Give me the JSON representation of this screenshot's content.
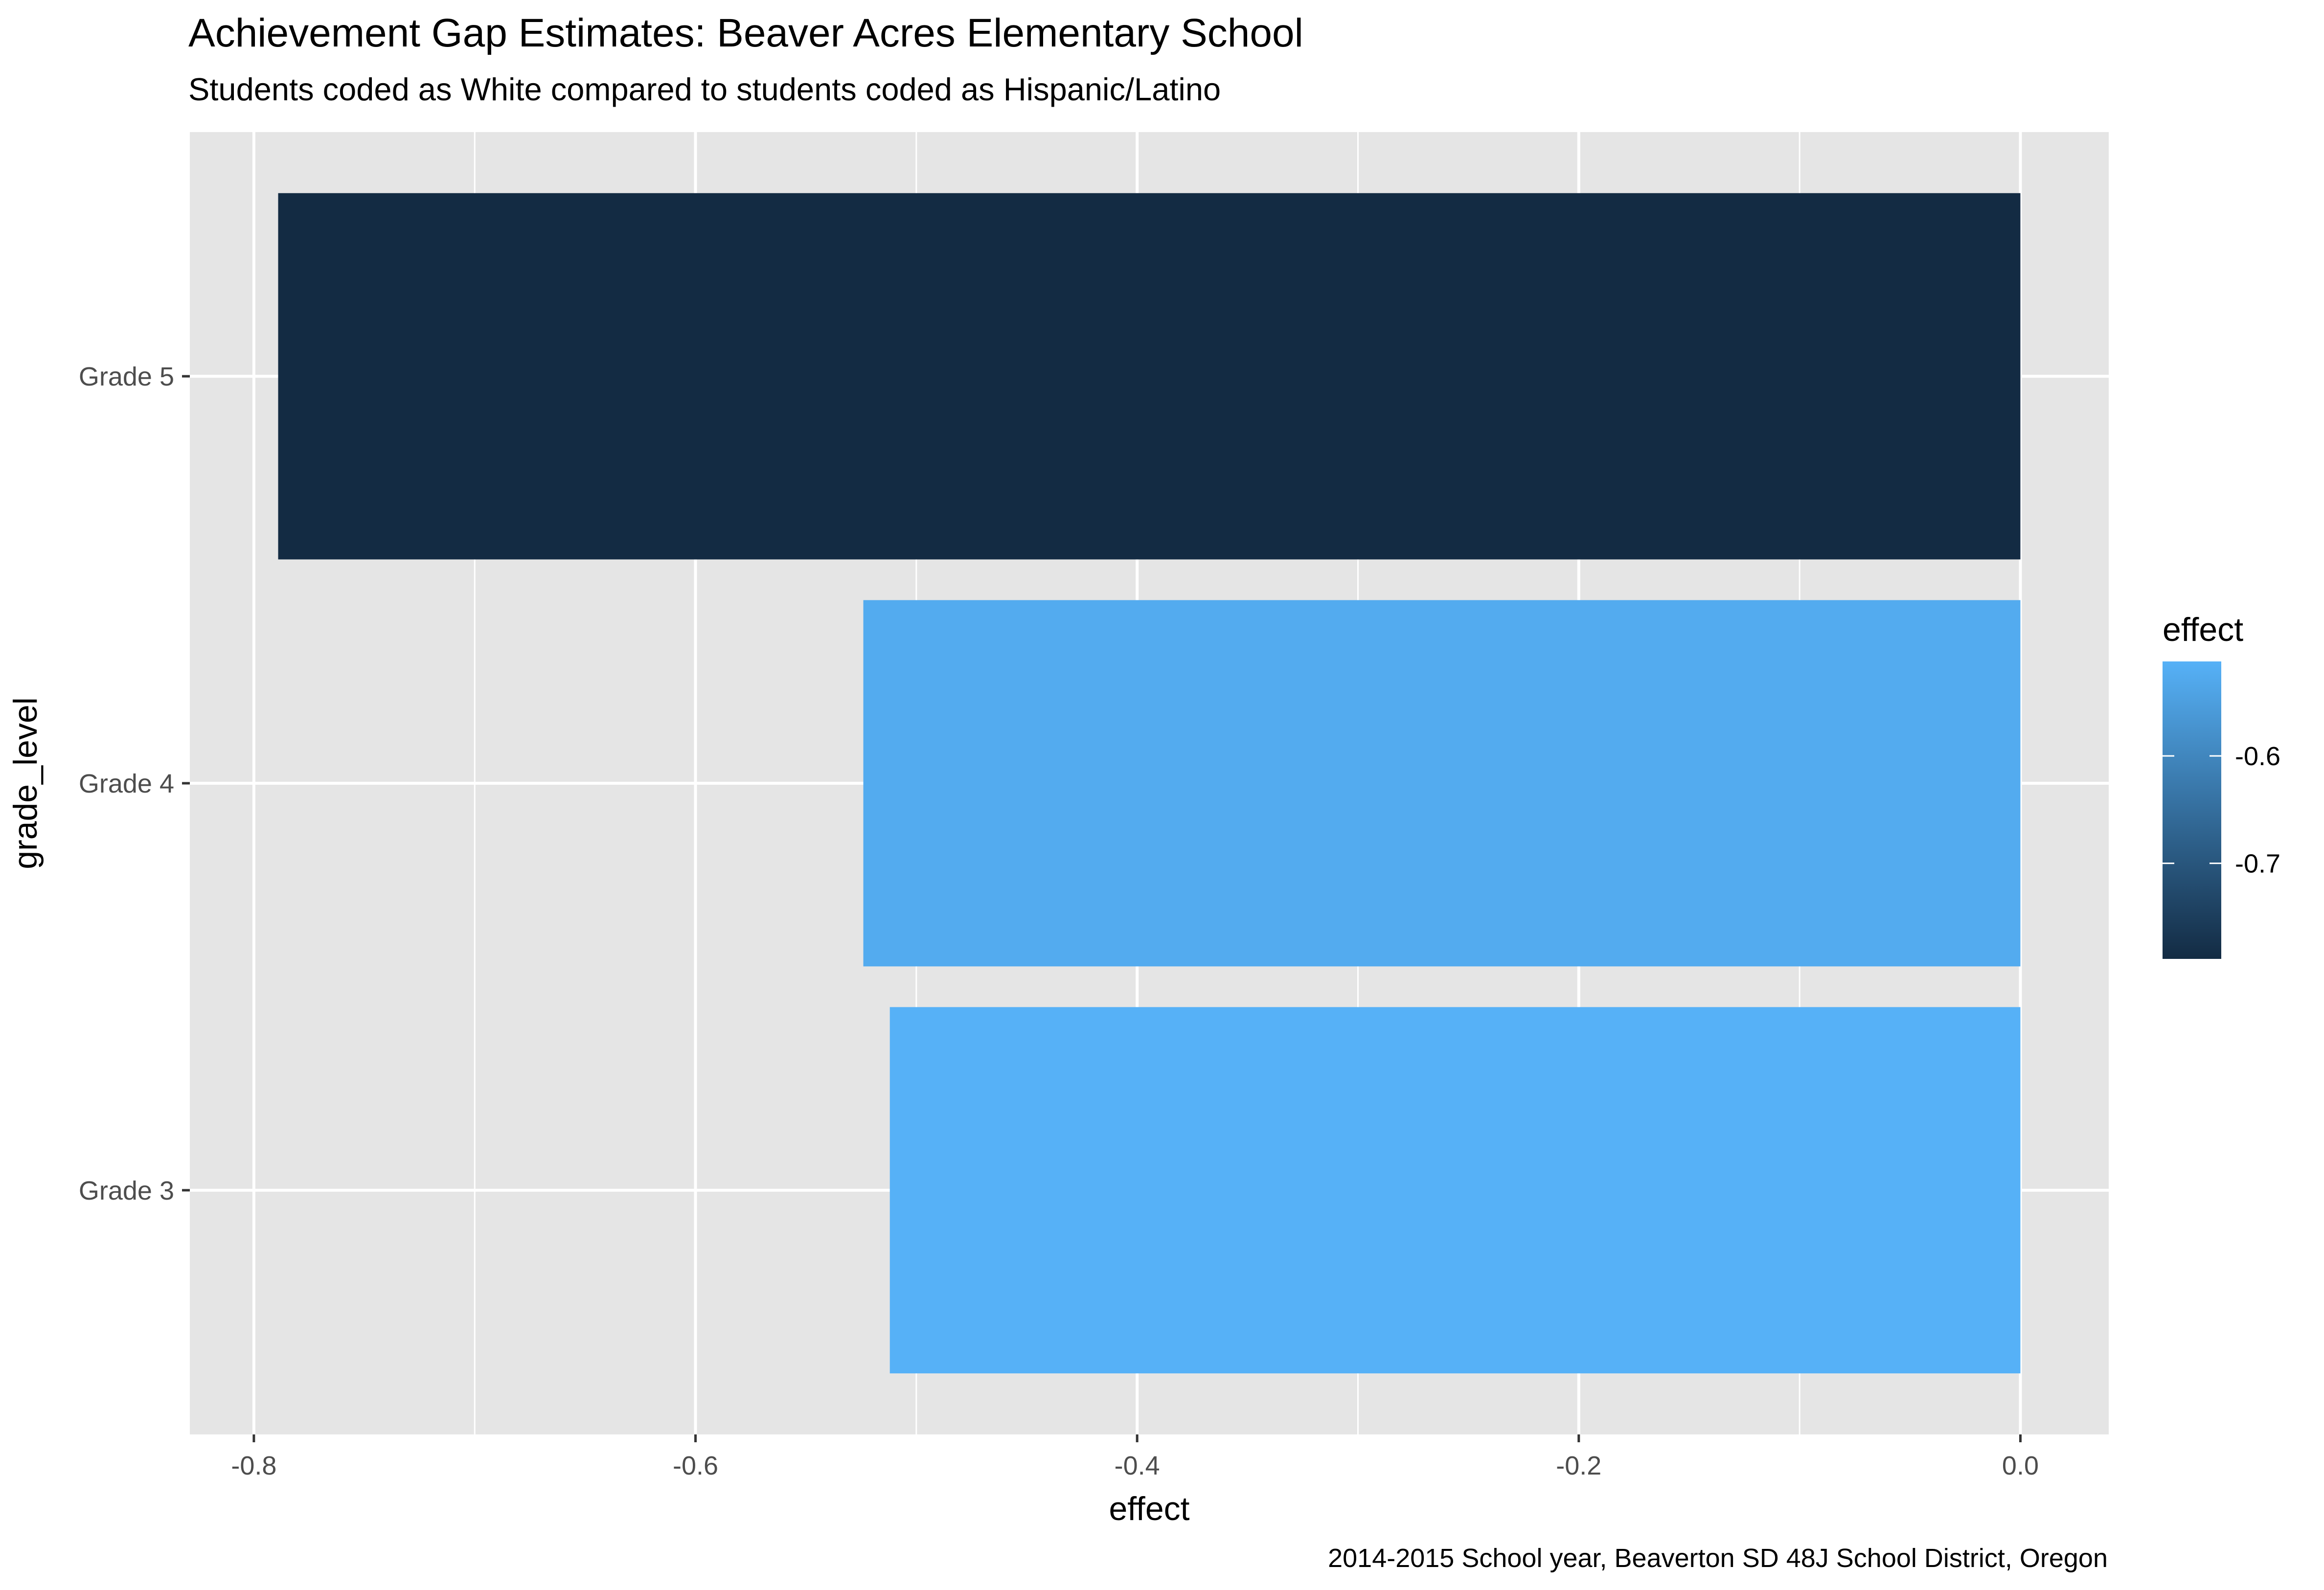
{
  "chart_data": {
    "type": "bar",
    "orientation": "horizontal",
    "title": "Achievement Gap Estimates: Beaver Acres Elementary School",
    "subtitle": "Students coded as White compared to students coded as Hispanic/Latino",
    "caption": "2014-2015 School year, Beaverton SD 48J School District, Oregon",
    "xlabel": "effect",
    "ylabel": "grade_level",
    "categories": [
      "Grade 3",
      "Grade 4",
      "Grade 5"
    ],
    "values": [
      -0.512,
      -0.524,
      -0.789
    ],
    "xlim": [
      -0.829,
      0.04
    ],
    "x_ticks": [
      -0.8,
      -0.6,
      -0.4,
      -0.2,
      0.0
    ],
    "x_tick_labels": [
      "-0.8",
      "-0.6",
      "-0.4",
      "-0.2",
      "0.0"
    ],
    "grid": true,
    "background": "#e5e5e5",
    "fill_scale": {
      "title": "effect",
      "low_value": -0.789,
      "high_value": -0.512,
      "low_color": "#132b43",
      "high_color": "#56b1f7",
      "breaks": [
        -0.7,
        -0.6
      ],
      "break_labels": [
        "-0.7",
        "-0.6"
      ]
    },
    "legend_position": "right"
  }
}
